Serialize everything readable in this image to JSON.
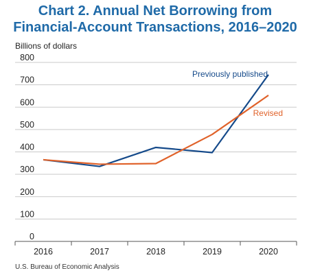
{
  "chart_data": {
    "type": "line",
    "title_line1": "Chart 2. Annual Net Borrowing from",
    "title_line2": "Financial-Account Transactions, 2016–2020",
    "ylabel": "Billions of dollars",
    "categories": [
      "2016",
      "2017",
      "2018",
      "2019",
      "2020"
    ],
    "ylim": [
      0,
      800
    ],
    "yticks": [
      0,
      100,
      200,
      300,
      400,
      500,
      600,
      700,
      800
    ],
    "grid": true,
    "series": [
      {
        "name": "Previously published",
        "values": [
          365,
          335,
          420,
          397,
          745
        ],
        "color": "#154a8a"
      },
      {
        "name": "Revised",
        "values": [
          365,
          345,
          348,
          478,
          653
        ],
        "color": "#e0622a"
      }
    ],
    "source": "U.S. Bureau of Economic Analysis"
  }
}
